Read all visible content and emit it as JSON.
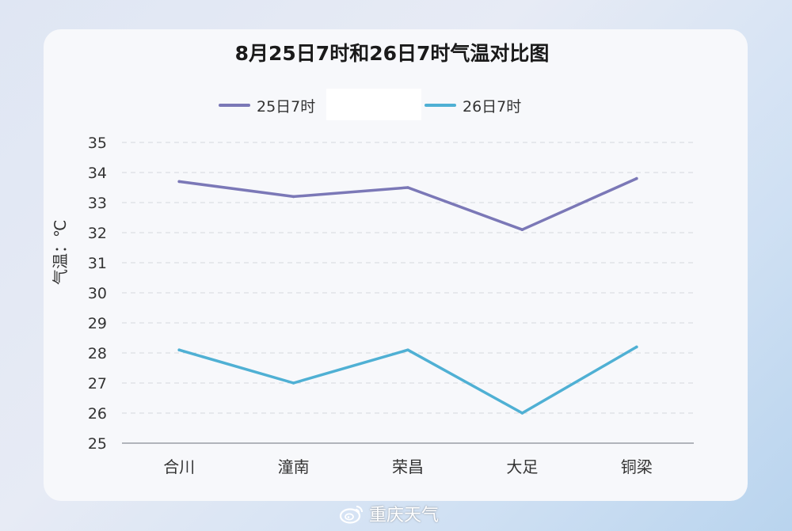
{
  "watermark": {
    "text": "重庆天气",
    "icon": "weibo-icon"
  },
  "chart_data": {
    "type": "line",
    "title": "8月25日7时和26日7时气温对比图",
    "ylabel": "气温：℃",
    "xlabel": "",
    "categories": [
      "合川",
      "潼南",
      "荣昌",
      "大足",
      "铜梁"
    ],
    "ylim": [
      25,
      35
    ],
    "yticks": [
      25,
      26,
      27,
      28,
      29,
      30,
      31,
      32,
      33,
      34,
      35
    ],
    "grid": "horizontal dashed",
    "legend_position": "top-center",
    "series": [
      {
        "name": "25日7时",
        "color": "#7b78b7",
        "values": [
          33.7,
          33.2,
          33.5,
          32.1,
          33.8
        ]
      },
      {
        "name": "26日7时",
        "color": "#4fb0d4",
        "values": [
          28.1,
          27.0,
          28.1,
          26.0,
          28.2
        ]
      }
    ]
  }
}
